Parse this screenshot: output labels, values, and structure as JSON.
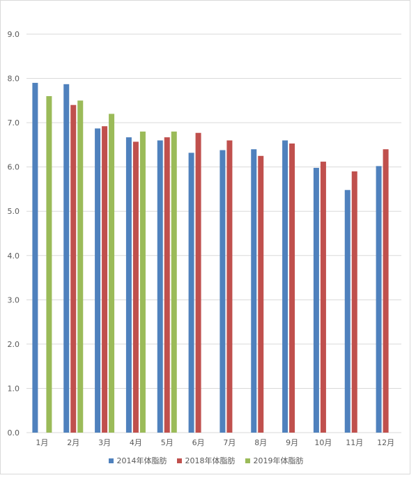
{
  "chart_data": {
    "type": "bar",
    "categories": [
      "1月",
      "2月",
      "3月",
      "4月",
      "5月",
      "6月",
      "7月",
      "8月",
      "9月",
      "10月",
      "11月",
      "12月"
    ],
    "series": [
      {
        "name": "2014年体脂肪",
        "color": "#4f81bd",
        "values": [
          7.9,
          7.87,
          6.87,
          6.67,
          6.6,
          6.32,
          6.38,
          6.4,
          6.6,
          5.98,
          5.48,
          6.02
        ]
      },
      {
        "name": "2018年体脂肪",
        "color": "#c0504d",
        "values": [
          null,
          7.4,
          6.92,
          6.57,
          6.67,
          6.77,
          6.6,
          6.25,
          6.53,
          6.12,
          5.9,
          6.4
        ]
      },
      {
        "name": "2019年体脂肪",
        "color": "#9bbb59",
        "values": [
          7.6,
          7.5,
          7.2,
          6.8,
          6.8,
          null,
          null,
          null,
          null,
          null,
          null,
          null
        ]
      }
    ],
    "ylim": [
      0,
      9
    ],
    "yticks": [
      "0.0",
      "1.0",
      "2.0",
      "3.0",
      "4.0",
      "5.0",
      "6.0",
      "7.0",
      "8.0",
      "9.0"
    ],
    "grid": true,
    "legend": "bottom"
  }
}
